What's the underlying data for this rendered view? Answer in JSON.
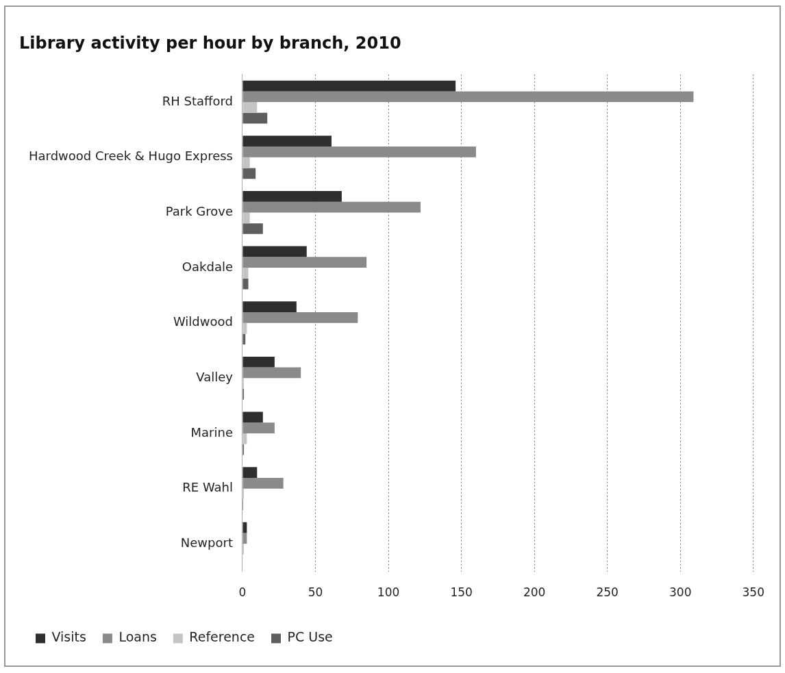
{
  "chart_data": {
    "type": "bar",
    "orientation": "horizontal",
    "title": "Library activity per hour by branch, 2010",
    "categories": [
      "RH Stafford",
      "Hardwood Creek & Hugo Express",
      "Park Grove",
      "Oakdale",
      "Wildwood",
      "Valley",
      "Marine",
      "RE Wahl",
      "Newport"
    ],
    "series": [
      {
        "name": "Visits",
        "color": "#2e2e2e",
        "values": [
          146,
          61,
          68,
          44,
          37,
          22,
          14,
          10,
          3
        ]
      },
      {
        "name": "Loans",
        "color": "#8a8a8a",
        "values": [
          309,
          160,
          122,
          85,
          79,
          40,
          22,
          28,
          3
        ]
      },
      {
        "name": "Reference",
        "color": "#c4c4c4",
        "values": [
          10,
          5,
          5,
          4,
          3,
          1,
          3,
          1,
          1
        ]
      },
      {
        "name": "PC Use",
        "color": "#5e5e5e",
        "values": [
          17,
          9,
          14,
          4,
          2,
          1,
          1,
          0.5,
          0
        ]
      }
    ],
    "xlim": [
      0,
      350
    ],
    "xticks": [
      0,
      50,
      100,
      150,
      200,
      250,
      300,
      350
    ],
    "grid": "x",
    "legend": "bottom"
  }
}
